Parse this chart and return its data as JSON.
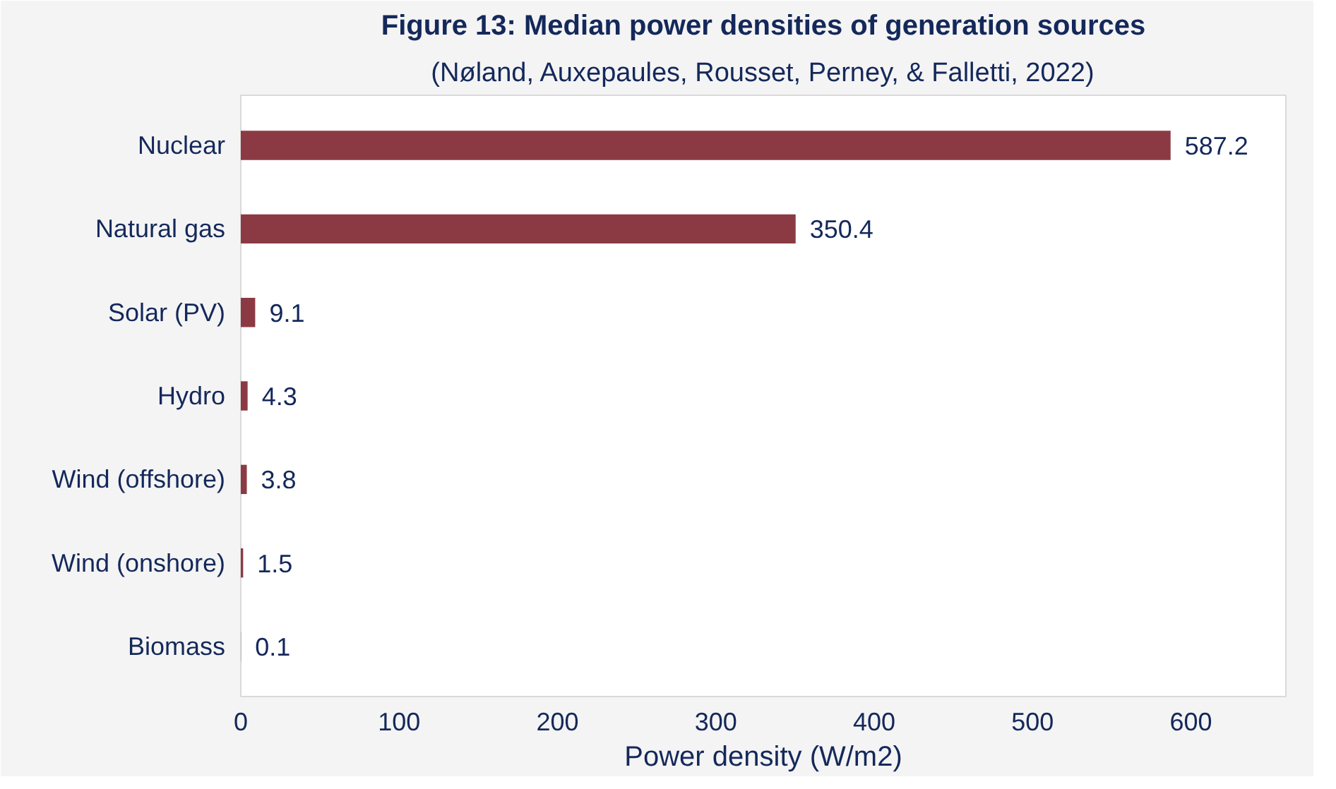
{
  "chart_data": {
    "type": "bar",
    "orientation": "horizontal",
    "title": "Figure 13: Median power densities of generation sources",
    "subtitle": "(Nøland, Auxepaules, Rousset, Perney, & Falletti, 2022)",
    "xlabel": "Power density (W/m2)",
    "categories": [
      "Nuclear",
      "Natural gas",
      "Solar (PV)",
      "Hydro",
      "Wind (offshore)",
      "Wind (onshore)",
      "Biomass"
    ],
    "values": [
      587.2,
      350.4,
      9.1,
      4.3,
      3.8,
      1.5,
      0.1
    ],
    "color": "#8b3a44",
    "xlim": [
      0,
      660
    ],
    "xticks": [
      0,
      100,
      200,
      300,
      400,
      500,
      600
    ],
    "data_labels": true,
    "grid": false
  }
}
